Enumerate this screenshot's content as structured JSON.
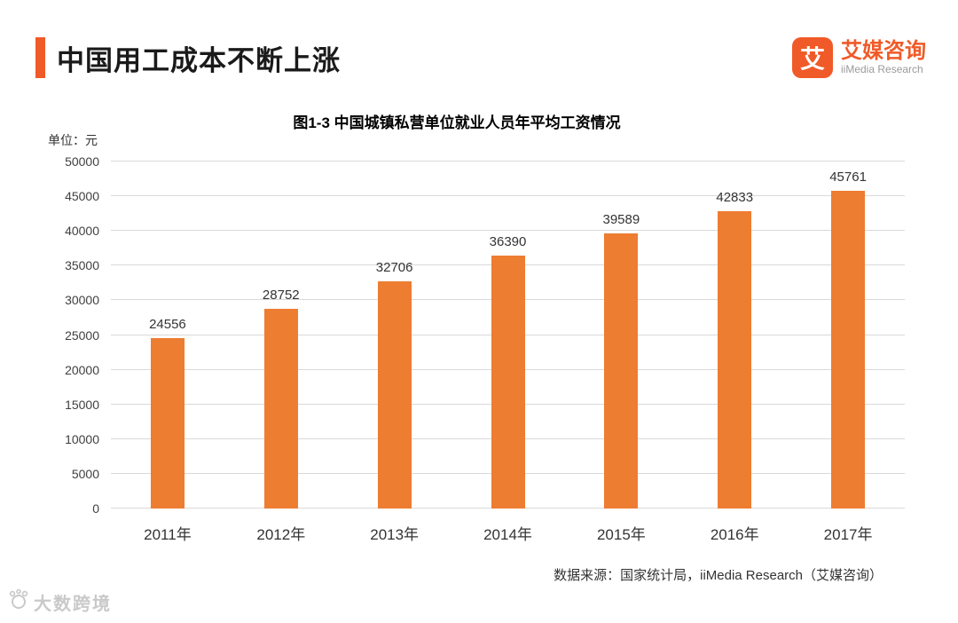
{
  "header": {
    "title": "中国用工成本不断上涨",
    "logo": {
      "icon_char": "艾",
      "name_cn": "艾媒咨询",
      "name_en": "iiMedia Research"
    }
  },
  "chart": {
    "title": "图1-3 中国城镇私营单位就业人员年平均工资情况",
    "unit_label": "单位：元",
    "source": "数据来源：国家统计局，iiMedia Research（艾媒咨询）"
  },
  "watermark": {
    "text": "大数跨境"
  },
  "colors": {
    "accent": "#f05a28",
    "bar": "#ed7d31",
    "gridline": "#d9d9d9"
  },
  "chart_data": {
    "type": "bar",
    "categories": [
      "2011年",
      "2012年",
      "2013年",
      "2014年",
      "2015年",
      "2016年",
      "2017年"
    ],
    "values": [
      24556,
      28752,
      32706,
      36390,
      39589,
      42833,
      45761
    ],
    "title": "图1-3 中国城镇私营单位就业人员年平均工资情况",
    "xlabel": "",
    "ylabel": "单位：元",
    "ylim": [
      0,
      50000
    ],
    "ytick_step": 5000,
    "grid": true,
    "legend": false,
    "bar_color": "#ed7d31"
  }
}
